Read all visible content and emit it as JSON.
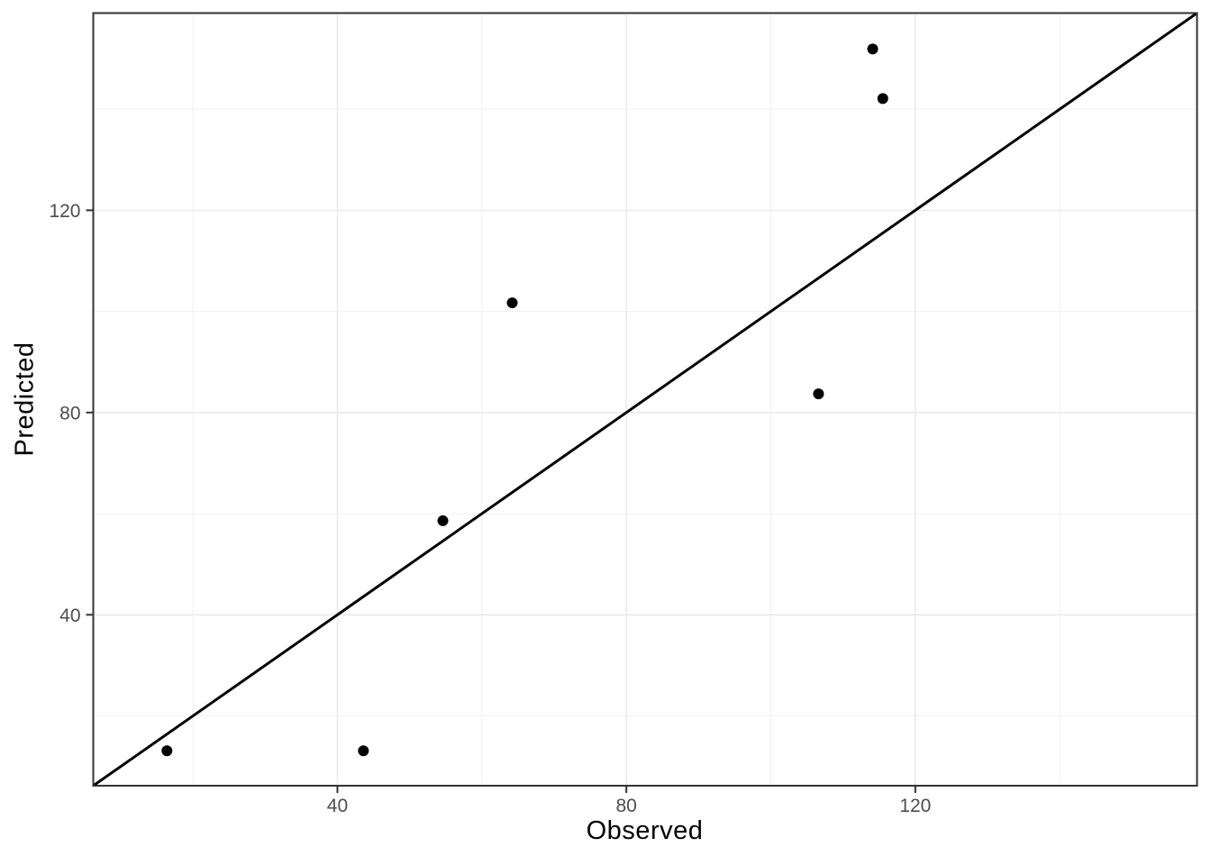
{
  "chart_data": {
    "type": "scatter",
    "title": "",
    "xlabel": "Observed",
    "ylabel": "Predicted",
    "points": [
      {
        "x": 16.4,
        "y": 13.1
      },
      {
        "x": 43.6,
        "y": 13.1
      },
      {
        "x": 54.6,
        "y": 58.6
      },
      {
        "x": 64.2,
        "y": 101.7
      },
      {
        "x": 106.6,
        "y": 83.7
      },
      {
        "x": 114.1,
        "y": 151.9
      },
      {
        "x": 115.5,
        "y": 142.1
      }
    ],
    "reference_line": {
      "slope": 1,
      "intercept": 0
    },
    "xlim": [
      6.2,
      159.0
    ],
    "ylim": [
      6.2,
      159.0
    ],
    "x_major_ticks": [
      40,
      80,
      120
    ],
    "y_major_ticks": [
      40,
      80,
      120
    ],
    "x_minor_ticks": [
      20,
      60,
      100,
      140
    ],
    "y_minor_ticks": [
      20,
      60,
      100,
      140
    ],
    "grid": "major+minor",
    "legend": "none",
    "theme": {
      "background": "#FFFFFF",
      "panel_background": "#FFFFFF",
      "grid_major_color": "#EBEBEB",
      "grid_minor_color": "#F0F0F0",
      "panel_border_color": "#333333",
      "tick_color": "#333333",
      "tick_label_color": "#4D4D4D",
      "point_color": "#000000",
      "line_color": "#000000",
      "axis_title_color": "#000000"
    }
  }
}
